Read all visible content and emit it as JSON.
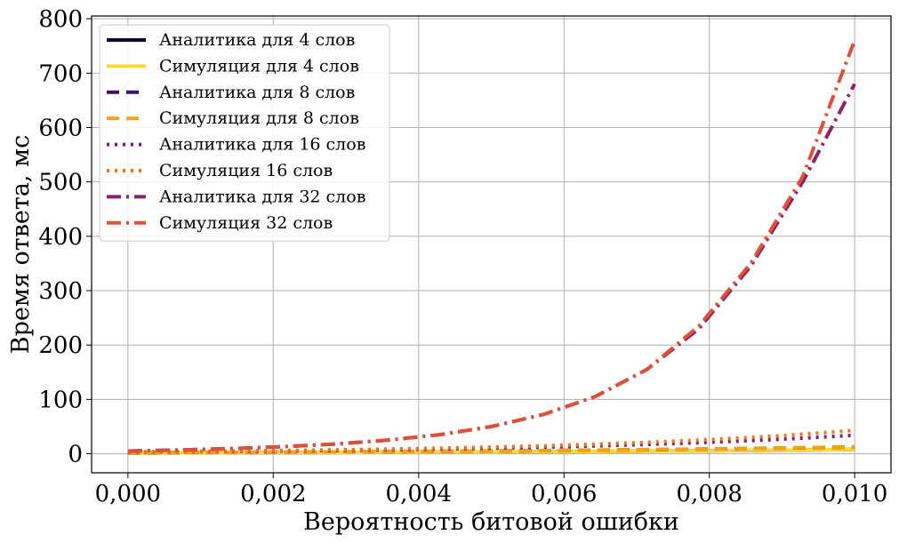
{
  "chart_data": {
    "type": "line",
    "title": "",
    "xlabel": "Вероятность битовой ошибки",
    "ylabel": "Время ответа, мс",
    "xlim": [
      -0.0005,
      0.0105
    ],
    "ylim": [
      -35,
      805
    ],
    "xticks": [
      0.0,
      0.002,
      0.004,
      0.006,
      0.008,
      0.01
    ],
    "xtick_labels": [
      "0,000",
      "0,002",
      "0,004",
      "0,006",
      "0,008",
      "0,010"
    ],
    "yticks": [
      0,
      100,
      200,
      300,
      400,
      500,
      600,
      700,
      800
    ],
    "ytick_labels": [
      "0",
      "100",
      "200",
      "300",
      "400",
      "500",
      "600",
      "700",
      "800"
    ],
    "grid": true,
    "legend_position": "top-left",
    "x": [
      0.0,
      0.000714,
      0.001429,
      0.002143,
      0.002857,
      0.003571,
      0.004286,
      0.005,
      0.005714,
      0.006429,
      0.007143,
      0.007857,
      0.008571,
      0.009286,
      0.01
    ],
    "series": [
      {
        "name": "Аналитика для 4 слов",
        "color": "#0d0829",
        "dash": "solid",
        "width": 4,
        "values": [
          1.5,
          1.7,
          1.9,
          2.1,
          2.4,
          2.7,
          3.0,
          3.4,
          3.8,
          4.3,
          4.8,
          5.4,
          6.1,
          6.9,
          7.8
        ]
      },
      {
        "name": "Симуляция для 4 слов",
        "color": "#fad93a",
        "dash": "solid",
        "width": 4,
        "values": [
          1.5,
          1.7,
          1.9,
          2.1,
          2.4,
          2.7,
          3.0,
          3.4,
          3.9,
          4.3,
          4.9,
          5.5,
          6.2,
          7.0,
          8.0
        ]
      },
      {
        "name": "Аналитика для 8 слов",
        "color": "#400f6b",
        "dash": "dash",
        "width": 4,
        "values": [
          2.0,
          2.3,
          2.6,
          3.0,
          3.4,
          3.9,
          4.5,
          5.1,
          5.8,
          6.6,
          7.5,
          8.5,
          9.7,
          11.0,
          12.5
        ]
      },
      {
        "name": "Симуляция для 8 слов",
        "color": "#f0a50e",
        "dash": "dash",
        "width": 4,
        "values": [
          2.0,
          2.3,
          2.6,
          3.0,
          3.4,
          3.9,
          4.5,
          5.2,
          5.9,
          6.7,
          7.6,
          8.6,
          9.8,
          11.2,
          12.8
        ]
      },
      {
        "name": "Аналитика для 16 слов",
        "color": "#7e1f7a",
        "dash": "dot",
        "width": 4,
        "values": [
          3.0,
          3.6,
          4.3,
          5.1,
          6.1,
          7.2,
          8.6,
          10.2,
          12.1,
          14.4,
          17.1,
          20.4,
          24.2,
          28.8,
          34.2
        ]
      },
      {
        "name": "Симуляция 16 слов",
        "color": "#f0741e",
        "dash": "dot",
        "width": 4,
        "values": [
          3.5,
          4.2,
          5.0,
          6.0,
          7.2,
          8.6,
          10.3,
          12.3,
          14.7,
          17.6,
          21.0,
          25.2,
          30.1,
          36.0,
          43.0
        ]
      },
      {
        "name": "Аналитика для 32 слов",
        "color": "#8c2369",
        "dash": "dashdot",
        "width": 4,
        "values": [
          5.0,
          7.0,
          9.5,
          13.0,
          18.0,
          25.0,
          35.0,
          50.0,
          72.0,
          105.0,
          155.0,
          230.0,
          345.0,
          500.0,
          680.0
        ]
      },
      {
        "name": "Симуляция 32 слов",
        "color": "#dd513a",
        "dash": "dashdot",
        "width": 4,
        "values": [
          5.0,
          7.0,
          9.5,
          13.0,
          18.0,
          25.0,
          35.0,
          50.0,
          72.0,
          105.0,
          155.0,
          235.0,
          350.0,
          510.0,
          760.0
        ]
      }
    ]
  }
}
